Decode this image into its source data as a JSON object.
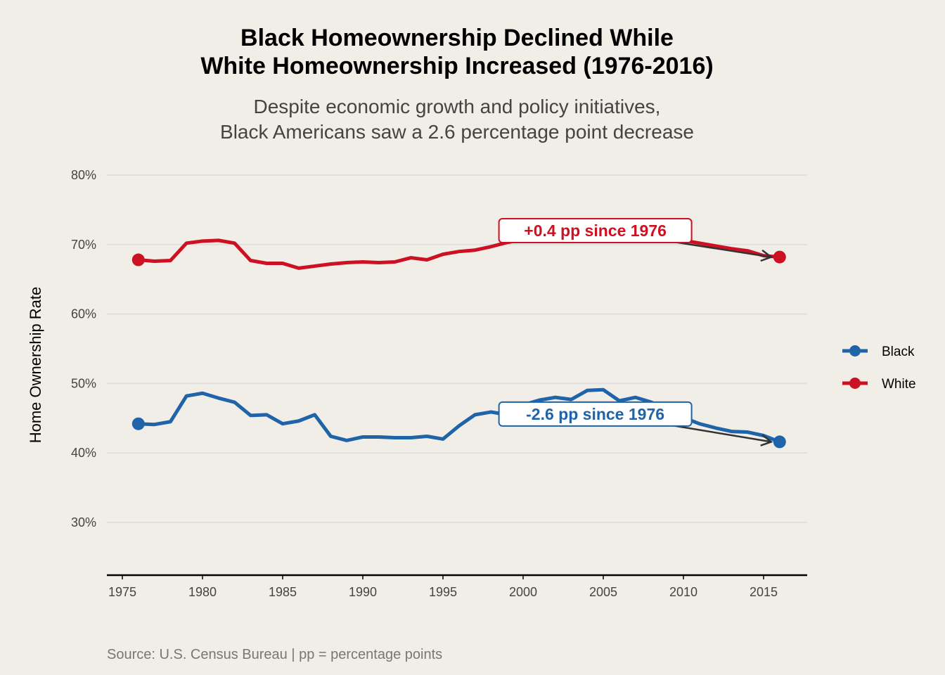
{
  "chart_data": {
    "type": "line",
    "title": "Black Homeownership Declined While\nWhite Homeownership Increased (1976-2016)",
    "title_lines": [
      "Black Homeownership Declined While",
      "White Homeownership Increased (1976-2016)"
    ],
    "subtitle_lines": [
      "Despite economic growth and policy initiatives,",
      "Black Americans saw a 2.6 percentage point decrease"
    ],
    "caption": "Source: U.S. Census Bureau | pp = percentage points",
    "xlabel": "",
    "ylabel": "Home Ownership Rate",
    "xlim": [
      1974,
      2018
    ],
    "ylim": [
      22.5,
      82
    ],
    "xticks": [
      1975,
      1980,
      1985,
      1990,
      1995,
      2000,
      2005,
      2010,
      2015
    ],
    "xtick_labels": [
      "1975",
      "1980",
      "1985",
      "1990",
      "1995",
      "2000",
      "2005",
      "2010",
      "2015"
    ],
    "yticks": [
      30,
      40,
      50,
      60,
      70,
      80
    ],
    "ytick_labels": [
      "30%",
      "40%",
      "50%",
      "60%",
      "70%",
      "80%"
    ],
    "grid": "horizontal",
    "legend_position": "right",
    "x": [
      1976,
      1977,
      1978,
      1979,
      1980,
      1981,
      1982,
      1983,
      1984,
      1985,
      1986,
      1987,
      1988,
      1989,
      1990,
      1991,
      1992,
      1993,
      1994,
      1995,
      1996,
      1997,
      1998,
      1999,
      2000,
      2001,
      2002,
      2003,
      2004,
      2005,
      2006,
      2007,
      2008,
      2009,
      2010,
      2011,
      2012,
      2013,
      2014,
      2015,
      2016
    ],
    "series": [
      {
        "name": "Black",
        "color": "#1f63a8",
        "values": [
          44.2,
          44.1,
          44.5,
          48.2,
          48.6,
          47.9,
          47.3,
          45.4,
          45.5,
          44.2,
          44.6,
          45.5,
          42.4,
          41.8,
          42.3,
          42.3,
          42.2,
          42.2,
          42.4,
          42.0,
          43.9,
          45.5,
          45.9,
          45.5,
          46.9,
          47.6,
          48.0,
          47.7,
          49.0,
          49.1,
          47.5,
          48.0,
          47.3,
          46.2,
          45.1,
          44.2,
          43.6,
          43.1,
          43.0,
          42.5,
          41.6
        ]
      },
      {
        "name": "White",
        "color": "#cc1122",
        "values": [
          67.8,
          67.6,
          67.7,
          70.2,
          70.5,
          70.6,
          70.2,
          67.7,
          67.3,
          67.3,
          66.6,
          66.9,
          67.2,
          67.4,
          67.5,
          67.4,
          67.5,
          68.1,
          67.8,
          68.6,
          69.0,
          69.2,
          69.7,
          70.3,
          70.7,
          71.3,
          71.8,
          72.1,
          72.8,
          72.8,
          72.4,
          72.1,
          71.5,
          70.9,
          70.6,
          70.2,
          69.8,
          69.4,
          69.1,
          68.4,
          68.2
        ]
      }
    ],
    "annotations": [
      {
        "series": "White",
        "text": "+0.4 pp since 1976",
        "target_year": 2016,
        "label_year": 2004.5,
        "label_value": 72.0
      },
      {
        "series": "Black",
        "text": "-2.6 pp since 1976",
        "target_year": 2016,
        "label_year": 2004.5,
        "label_value": 45.6
      }
    ]
  }
}
